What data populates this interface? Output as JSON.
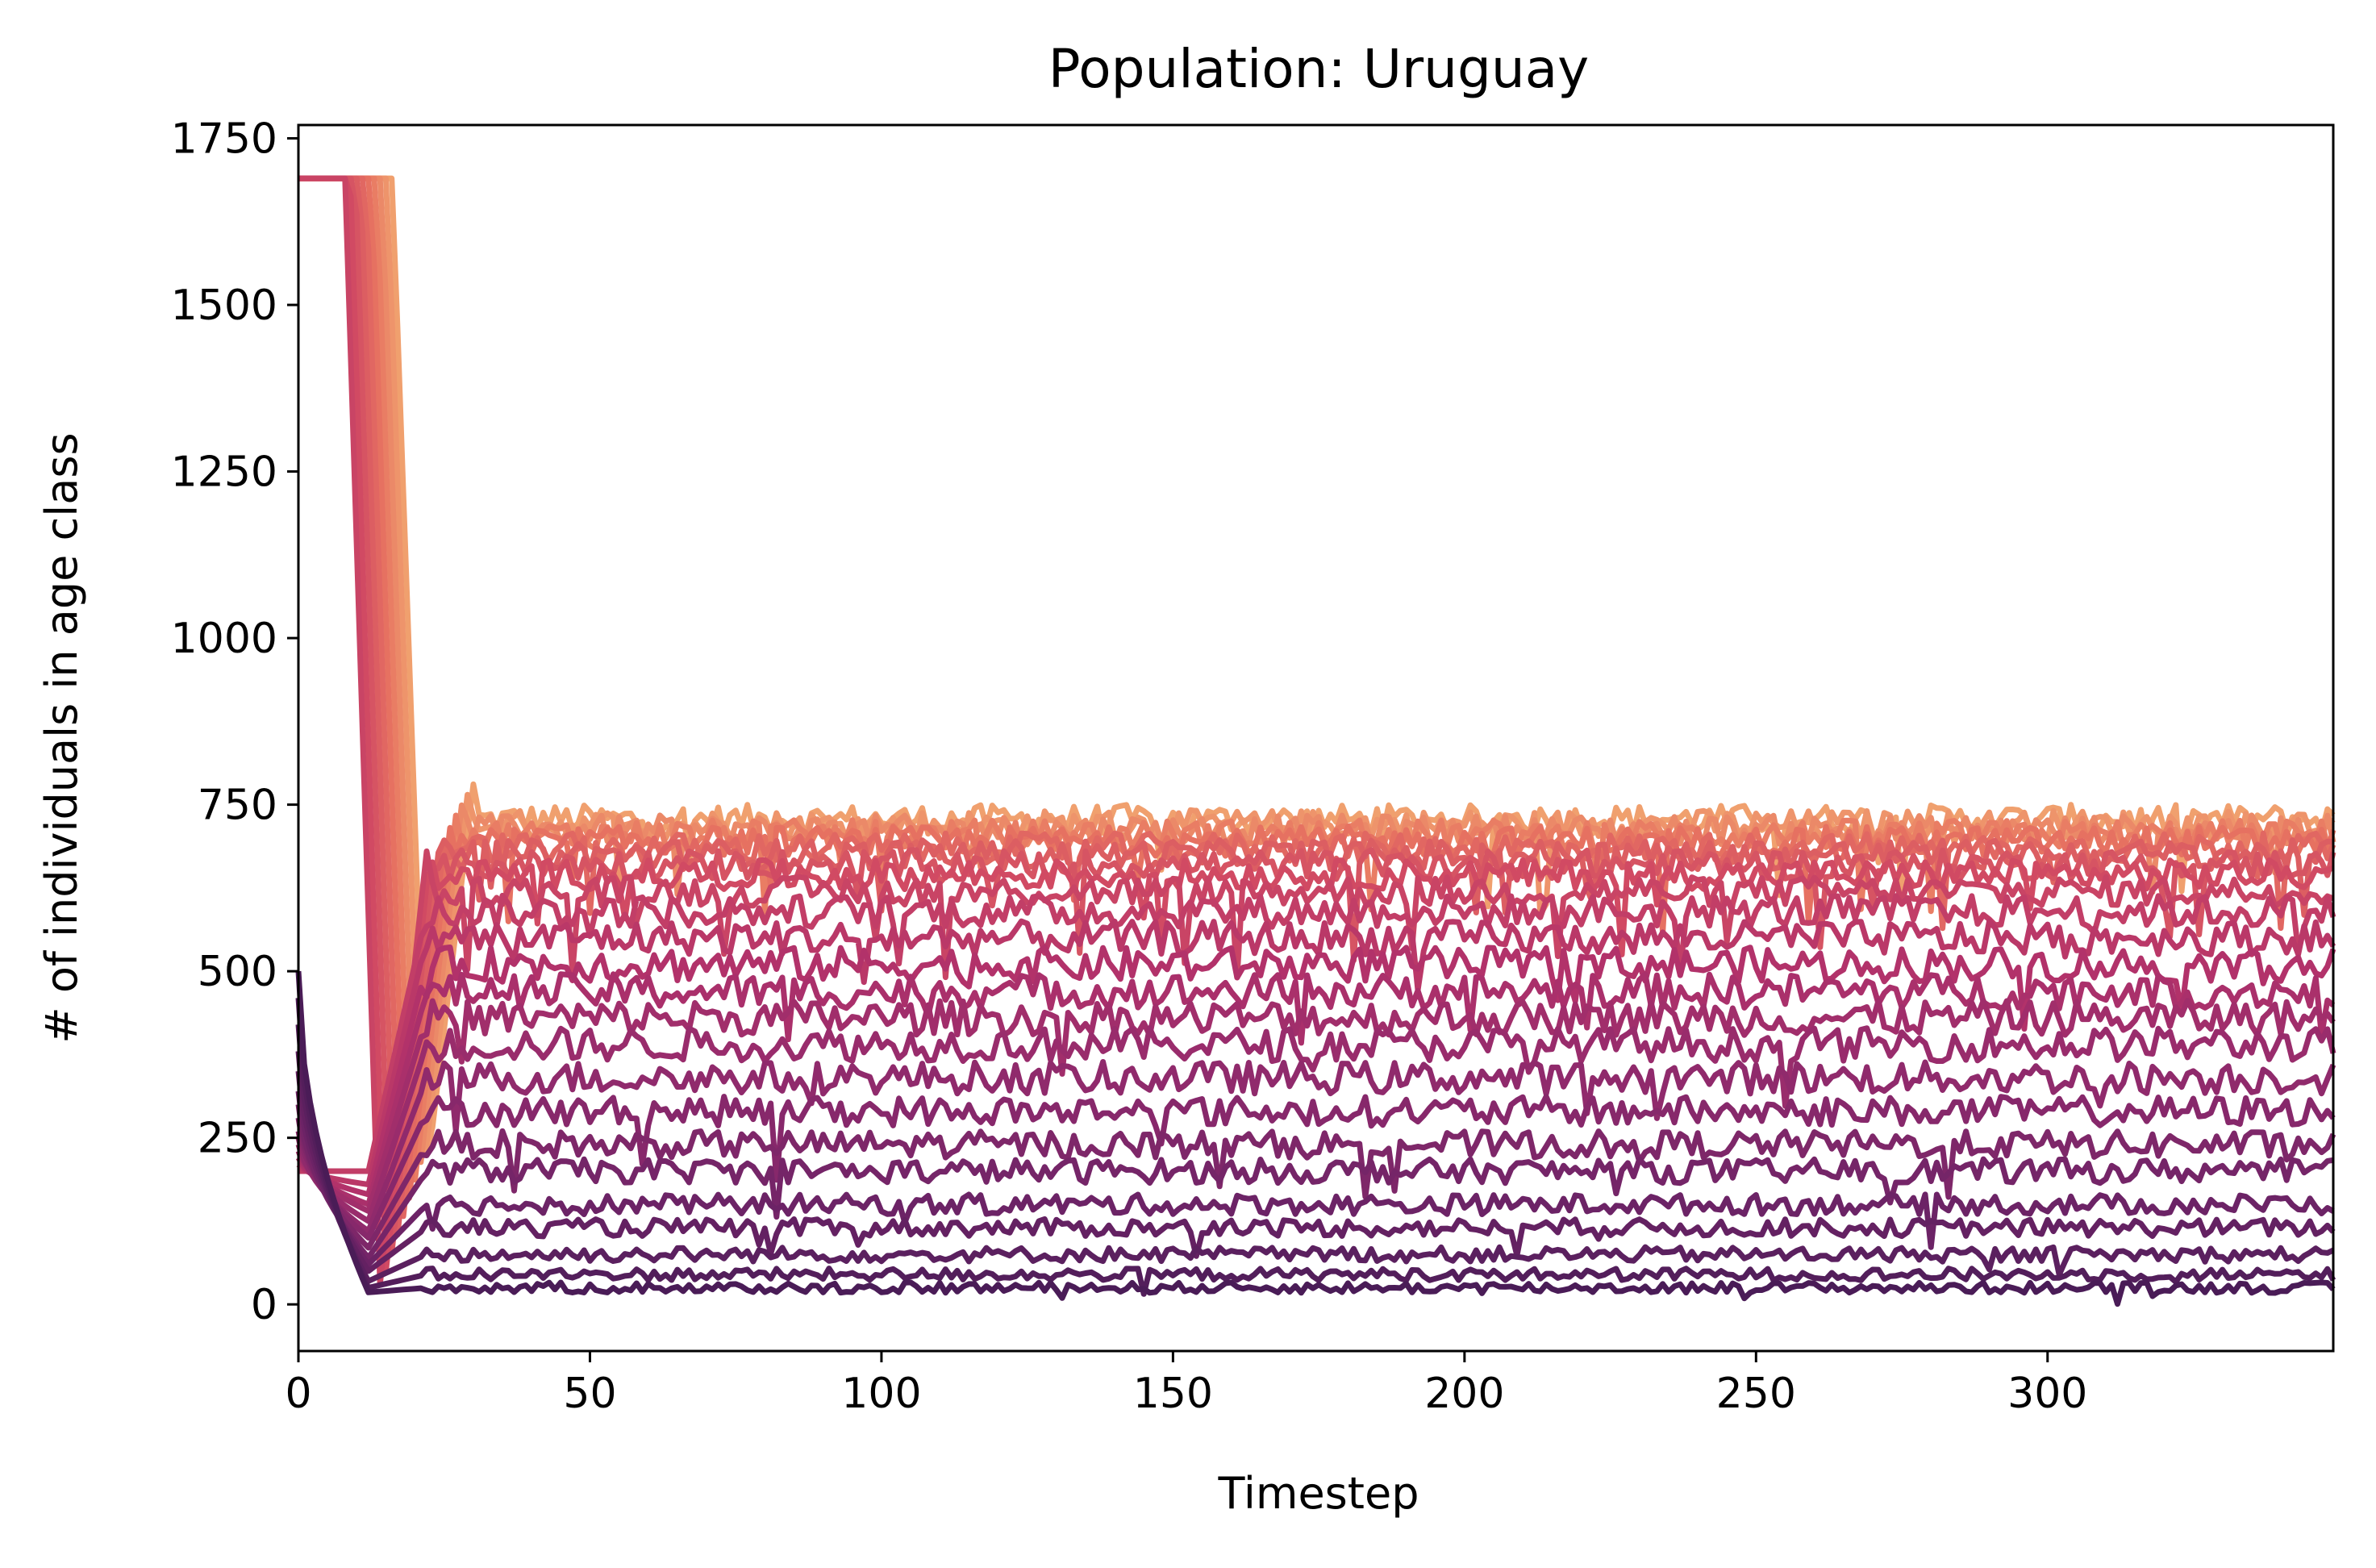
{
  "chart_data": {
    "type": "line",
    "title": "Population: Uruguay",
    "xlabel": "Timestep",
    "ylabel": "# of individuals in age class",
    "xlim": [
      0,
      349
    ],
    "ylim": [
      -70,
      1770
    ],
    "xticks": [
      0,
      50,
      100,
      150,
      200,
      250,
      300
    ],
    "yticks": [
      0,
      250,
      500,
      750,
      1000,
      1250,
      1500,
      1750
    ],
    "grid": false,
    "legend": "none",
    "colormap": [
      "#f0a06e",
      "#e67161",
      "#d14a63",
      "#b2326a",
      "#902a6c",
      "#6c2366",
      "#4a1c57"
    ],
    "series_count": 25,
    "series_summary": [
      {
        "start": 500,
        "early_min": 18,
        "steady_level": 25,
        "noise": 8
      },
      {
        "start": 460,
        "early_min": 25,
        "steady_level": 45,
        "noise": 9
      },
      {
        "start": 420,
        "early_min": 35,
        "steady_level": 75,
        "noise": 11
      },
      {
        "start": 380,
        "early_min": 50,
        "steady_level": 115,
        "noise": 13
      },
      {
        "start": 350,
        "early_min": 60,
        "steady_level": 150,
        "noise": 15
      },
      {
        "start": 320,
        "early_min": 70,
        "steady_level": 200,
        "noise": 18
      },
      {
        "start": 300,
        "early_min": 85,
        "steady_level": 240,
        "noise": 20
      },
      {
        "start": 280,
        "early_min": 100,
        "steady_level": 290,
        "noise": 22
      },
      {
        "start": 260,
        "early_min": 110,
        "steady_level": 340,
        "noise": 24
      },
      {
        "start": 250,
        "early_min": 125,
        "steady_level": 390,
        "noise": 25
      },
      {
        "start": 240,
        "early_min": 140,
        "steady_level": 430,
        "noise": 26
      },
      {
        "start": 230,
        "early_min": 150,
        "steady_level": 470,
        "noise": 26
      },
      {
        "start": 220,
        "early_min": 165,
        "steady_level": 510,
        "noise": 26
      },
      {
        "start": 210,
        "early_min": 180,
        "steady_level": 550,
        "noise": 25
      },
      {
        "start": 200,
        "early_min": 200,
        "steady_level": 590,
        "noise": 24
      },
      {
        "start": 1690,
        "early_min": 30,
        "steady_level": 620,
        "noise": 22
      },
      {
        "start": 1690,
        "early_min": 40,
        "steady_level": 645,
        "noise": 22
      },
      {
        "start": 1690,
        "early_min": 60,
        "steady_level": 660,
        "noise": 22
      },
      {
        "start": 1690,
        "early_min": 80,
        "steady_level": 675,
        "noise": 22
      },
      {
        "start": 1690,
        "early_min": 100,
        "steady_level": 685,
        "noise": 22
      },
      {
        "start": 1690,
        "early_min": 120,
        "steady_level": 695,
        "noise": 22
      },
      {
        "start": 1690,
        "early_min": 140,
        "steady_level": 705,
        "noise": 22
      },
      {
        "start": 1690,
        "early_min": 160,
        "steady_level": 712,
        "noise": 22
      },
      {
        "start": 1690,
        "early_min": 180,
        "steady_level": 720,
        "noise": 22
      },
      {
        "start": 1690,
        "early_min": 200,
        "steady_level": 728,
        "noise": 22
      }
    ]
  }
}
